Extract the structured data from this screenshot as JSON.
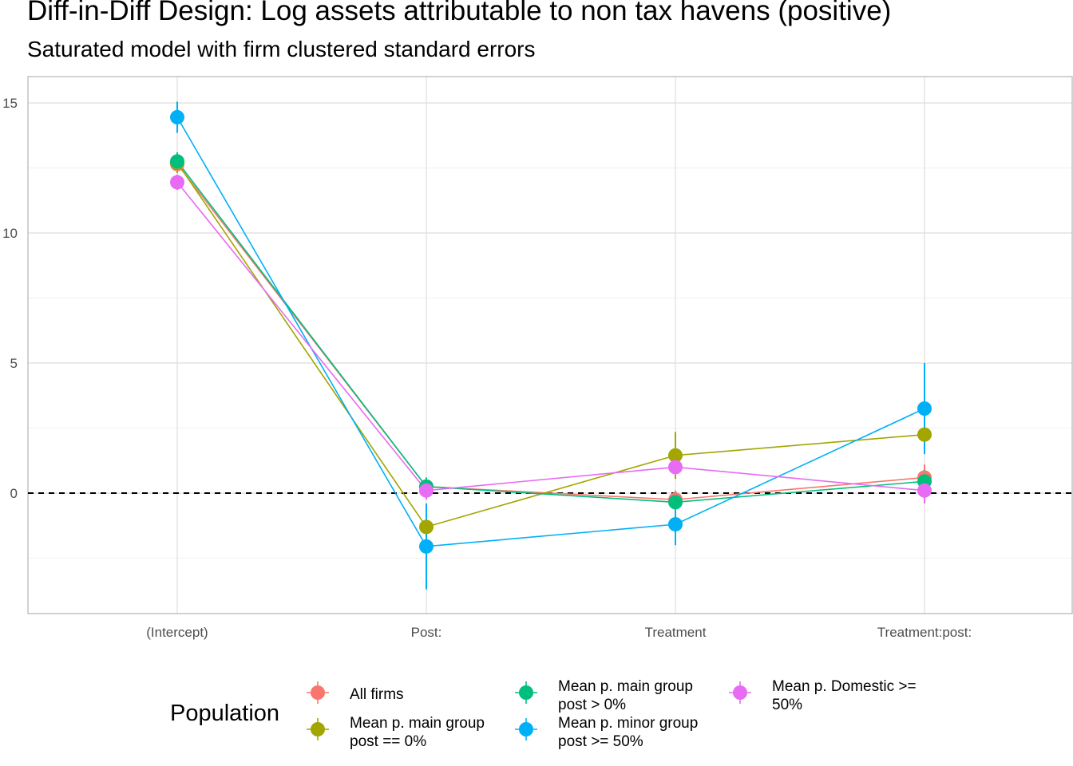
{
  "chart_data": {
    "type": "scatter",
    "title": "Diff-in-Diff Design: Log assets attributable to non tax havens (positive)",
    "subtitle": "Saturated model with firm clustered standard errors",
    "xlabel": "",
    "ylabel": "",
    "categories": [
      "(Intercept)",
      "Post:",
      "Treatment",
      "Treatment:post:"
    ],
    "y_ticks": [
      0,
      5,
      10,
      15
    ],
    "ylim": [
      -4.6,
      16.0
    ],
    "grid": true,
    "reference_line": 0,
    "legend": {
      "title": "Population",
      "placement": "bottom"
    },
    "series": [
      {
        "name": "All firms",
        "color": "#F8766D",
        "values": [
          12.65,
          0.25,
          -0.25,
          0.6
        ],
        "lower": [
          12.3,
          -0.1,
          -0.6,
          0.1
        ],
        "upper": [
          13.0,
          0.6,
          0.1,
          1.1
        ]
      },
      {
        "name": "Mean p. main group post == 0%",
        "color": "#A3A500",
        "values": [
          12.7,
          -1.3,
          1.45,
          2.25
        ],
        "lower": [
          12.3,
          -1.5,
          0.55,
          1.7
        ],
        "upper": [
          13.1,
          -1.1,
          2.35,
          2.8
        ]
      },
      {
        "name": "Mean p. main group post > 0%",
        "color": "#00BF7D",
        "values": [
          12.75,
          0.25,
          -0.35,
          0.45
        ],
        "lower": [
          12.4,
          -0.1,
          -0.7,
          0.0
        ],
        "upper": [
          13.1,
          0.6,
          0.0,
          0.9
        ]
      },
      {
        "name": "Mean p. minor group post >= 50%",
        "color": "#00B0F6",
        "values": [
          14.45,
          -2.05,
          -1.2,
          3.25
        ],
        "lower": [
          13.85,
          -3.7,
          -2.0,
          1.5
        ],
        "upper": [
          15.05,
          -0.4,
          -0.4,
          5.0
        ]
      },
      {
        "name": "Mean p. Domestic >= 50%",
        "color": "#E76BF3",
        "values": [
          11.95,
          0.1,
          1.0,
          0.1
        ],
        "lower": [
          11.65,
          -0.25,
          0.7,
          -0.4
        ],
        "upper": [
          12.25,
          0.45,
          1.3,
          0.6
        ]
      }
    ]
  },
  "legend_labels": [
    {
      "lines": [
        "All firms"
      ]
    },
    {
      "lines": [
        "Mean p. main group",
        "post == 0%"
      ]
    },
    {
      "lines": [
        "Mean p. main group",
        "post > 0%"
      ]
    },
    {
      "lines": [
        "Mean p. minor group",
        "post >= 50%"
      ]
    },
    {
      "lines": [
        "Mean p. Domestic >=",
        "50%"
      ]
    }
  ]
}
